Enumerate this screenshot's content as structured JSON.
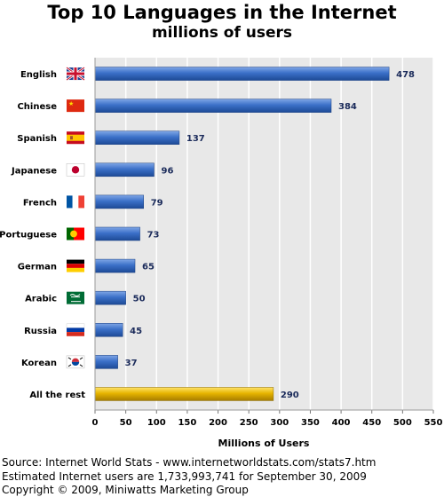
{
  "chart_data": {
    "type": "bar",
    "orientation": "horizontal",
    "title": "Top 10 Languages in the Internet",
    "subtitle": "millions of users",
    "xlabel": "Millions of Users",
    "ylabel": "",
    "xlim": [
      0,
      550
    ],
    "x_ticks": [
      0,
      50,
      100,
      150,
      200,
      250,
      300,
      350,
      400,
      450,
      500,
      550
    ],
    "grid": true,
    "categories": [
      "English",
      "Chinese",
      "Spanish",
      "Japanese",
      "French",
      "Portuguese",
      "German",
      "Arabic",
      "Russia",
      "Korean",
      "All the rest"
    ],
    "values": [
      478,
      384,
      137,
      96,
      79,
      73,
      65,
      50,
      45,
      37,
      290
    ],
    "flag_icons": [
      "uk-flag-icon",
      "china-flag-icon",
      "spain-flag-icon",
      "japan-flag-icon",
      "france-flag-icon",
      "portugal-flag-icon",
      "germany-flag-icon",
      "saudi-arabia-flag-icon",
      "russia-flag-icon",
      "south-korea-flag-icon",
      null
    ],
    "colors": {
      "bar": "#3a6fc7",
      "bar_highlight": "#e3b000",
      "plot_background": "#e8e8e8",
      "grid": "#ffffff",
      "value_label": "#1a2a5a"
    }
  },
  "footer": {
    "source": "Source: Internet World Stats - www.internetworldstats.com/stats7.htm",
    "estimate": "Estimated Internet users are 1,733,993,741 for September 30, 2009",
    "copyright": "Copyright © 2009, Miniwatts Marketing Group"
  }
}
